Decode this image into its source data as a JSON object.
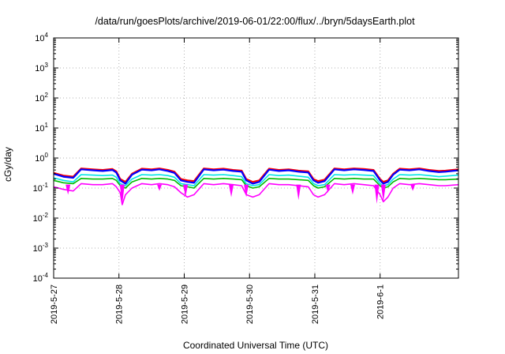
{
  "chart_data": {
    "type": "line",
    "title": "/data/run/goesPlots/archive/2019-06-01/22:00/flux/../bryn/5daysEarth.plot",
    "xlabel": "Coordinated Universal Time (UTC)",
    "ylabel": "cGy/day",
    "yscale": "log",
    "ylim": [
      0.0001,
      10000
    ],
    "xlim_days": [
      0,
      6.2
    ],
    "grid": true,
    "x_ticks": [
      {
        "label": "2019-5-27",
        "day": 0
      },
      {
        "label": "2019-5-28",
        "day": 1
      },
      {
        "label": "2019-5-29",
        "day": 2
      },
      {
        "label": "2019-5-30",
        "day": 3
      },
      {
        "label": "2019-5-31",
        "day": 4
      },
      {
        "label": "2019-6-1",
        "day": 5
      }
    ],
    "y_ticks": [
      {
        "base": "10",
        "exp": "-4",
        "value": 0.0001
      },
      {
        "base": "10",
        "exp": "-3",
        "value": 0.001
      },
      {
        "base": "10",
        "exp": "-2",
        "value": 0.01
      },
      {
        "base": "10",
        "exp": "-1",
        "value": 0.1
      },
      {
        "base": "10",
        "exp": "0",
        "value": 1
      },
      {
        "base": "10",
        "exp": "1",
        "value": 10
      },
      {
        "base": "10",
        "exp": "2",
        "value": 100
      },
      {
        "base": "10",
        "exp": "3",
        "value": 1000
      },
      {
        "base": "10",
        "exp": "4",
        "value": 10000
      }
    ],
    "series": [
      {
        "color": "#ff0000",
        "days": [
          0,
          0.15,
          0.3,
          0.42,
          0.6,
          0.75,
          0.9,
          0.96,
          1.02,
          1.1,
          1.2,
          1.35,
          1.5,
          1.62,
          1.75,
          1.85,
          1.95,
          2.05,
          2.15,
          2.3,
          2.45,
          2.6,
          2.75,
          2.88,
          2.95,
          3.05,
          3.15,
          3.3,
          3.45,
          3.6,
          3.75,
          3.9,
          3.98,
          4.05,
          4.15,
          4.3,
          4.45,
          4.6,
          4.75,
          4.9,
          5.0,
          5.05,
          5.12,
          5.2,
          5.3,
          5.45,
          5.6,
          5.75,
          5.9,
          6.0,
          6.2
        ],
        "values": [
          0.32,
          0.26,
          0.24,
          0.45,
          0.42,
          0.4,
          0.43,
          0.36,
          0.2,
          0.16,
          0.3,
          0.44,
          0.42,
          0.45,
          0.4,
          0.35,
          0.2,
          0.18,
          0.17,
          0.45,
          0.42,
          0.44,
          0.4,
          0.38,
          0.2,
          0.16,
          0.18,
          0.44,
          0.4,
          0.42,
          0.38,
          0.36,
          0.2,
          0.17,
          0.19,
          0.45,
          0.42,
          0.45,
          0.43,
          0.4,
          0.2,
          0.16,
          0.18,
          0.3,
          0.44,
          0.42,
          0.45,
          0.4,
          0.37,
          0.38,
          0.42
        ]
      },
      {
        "color": "#0000ff",
        "days": [
          0,
          0.15,
          0.3,
          0.42,
          0.6,
          0.75,
          0.9,
          0.96,
          1.02,
          1.1,
          1.2,
          1.35,
          1.5,
          1.62,
          1.75,
          1.85,
          1.95,
          2.05,
          2.15,
          2.3,
          2.45,
          2.6,
          2.75,
          2.88,
          2.95,
          3.05,
          3.15,
          3.3,
          3.45,
          3.6,
          3.75,
          3.9,
          3.98,
          4.05,
          4.15,
          4.3,
          4.45,
          4.6,
          4.75,
          4.9,
          5.0,
          5.05,
          5.12,
          5.2,
          5.3,
          5.45,
          5.6,
          5.75,
          5.9,
          6.0,
          6.2
        ],
        "values": [
          0.3,
          0.24,
          0.22,
          0.42,
          0.39,
          0.37,
          0.4,
          0.33,
          0.18,
          0.14,
          0.28,
          0.41,
          0.39,
          0.42,
          0.37,
          0.32,
          0.18,
          0.16,
          0.15,
          0.42,
          0.39,
          0.41,
          0.37,
          0.35,
          0.18,
          0.14,
          0.16,
          0.41,
          0.37,
          0.39,
          0.35,
          0.33,
          0.18,
          0.15,
          0.17,
          0.42,
          0.39,
          0.42,
          0.4,
          0.37,
          0.18,
          0.14,
          0.16,
          0.28,
          0.41,
          0.39,
          0.42,
          0.37,
          0.34,
          0.35,
          0.39
        ]
      },
      {
        "color": "#00e5e5",
        "days": [
          0,
          0.15,
          0.3,
          0.42,
          0.6,
          0.75,
          0.9,
          0.96,
          1.02,
          1.1,
          1.2,
          1.35,
          1.5,
          1.62,
          1.75,
          1.85,
          1.95,
          2.05,
          2.15,
          2.3,
          2.45,
          2.6,
          2.75,
          2.88,
          2.95,
          3.05,
          3.15,
          3.3,
          3.45,
          3.6,
          3.75,
          3.9,
          3.98,
          4.05,
          4.15,
          4.3,
          4.45,
          4.6,
          4.75,
          4.9,
          5.0,
          5.05,
          5.12,
          5.2,
          5.3,
          5.45,
          5.6,
          5.75,
          5.9,
          6.0,
          6.2
        ],
        "values": [
          0.22,
          0.18,
          0.16,
          0.28,
          0.27,
          0.26,
          0.27,
          0.23,
          0.14,
          0.12,
          0.2,
          0.28,
          0.27,
          0.28,
          0.26,
          0.23,
          0.14,
          0.13,
          0.12,
          0.28,
          0.27,
          0.28,
          0.26,
          0.24,
          0.14,
          0.12,
          0.13,
          0.28,
          0.26,
          0.27,
          0.25,
          0.23,
          0.14,
          0.12,
          0.13,
          0.28,
          0.27,
          0.28,
          0.27,
          0.26,
          0.14,
          0.12,
          0.13,
          0.2,
          0.28,
          0.27,
          0.28,
          0.26,
          0.24,
          0.25,
          0.27
        ]
      },
      {
        "color": "#00bb00",
        "days": [
          0,
          0.15,
          0.3,
          0.42,
          0.6,
          0.75,
          0.9,
          0.96,
          1.02,
          1.1,
          1.2,
          1.35,
          1.5,
          1.62,
          1.75,
          1.85,
          1.95,
          2.05,
          2.15,
          2.3,
          2.45,
          2.6,
          2.75,
          2.88,
          2.95,
          3.05,
          3.15,
          3.3,
          3.45,
          3.6,
          3.75,
          3.9,
          3.98,
          4.05,
          4.15,
          4.3,
          4.45,
          4.6,
          4.75,
          4.9,
          5.0,
          5.05,
          5.12,
          5.2,
          5.3,
          5.45,
          5.6,
          5.75,
          5.9,
          6.0,
          6.2
        ],
        "values": [
          0.18,
          0.15,
          0.14,
          0.21,
          0.2,
          0.2,
          0.21,
          0.18,
          0.12,
          0.1,
          0.16,
          0.21,
          0.2,
          0.21,
          0.2,
          0.18,
          0.12,
          0.11,
          0.1,
          0.21,
          0.2,
          0.21,
          0.2,
          0.19,
          0.12,
          0.1,
          0.11,
          0.21,
          0.2,
          0.2,
          0.19,
          0.18,
          0.12,
          0.1,
          0.11,
          0.21,
          0.2,
          0.21,
          0.2,
          0.2,
          0.12,
          0.1,
          0.11,
          0.16,
          0.21,
          0.2,
          0.21,
          0.2,
          0.19,
          0.19,
          0.2
        ]
      },
      {
        "color": "#ff00ff",
        "days": [
          0,
          0.15,
          0.3,
          0.42,
          0.6,
          0.75,
          0.9,
          0.96,
          1.02,
          1.05,
          1.1,
          1.2,
          1.35,
          1.5,
          1.62,
          1.75,
          1.85,
          1.95,
          2.05,
          2.15,
          2.3,
          2.45,
          2.6,
          2.75,
          2.88,
          2.95,
          3.05,
          3.15,
          3.3,
          3.45,
          3.6,
          3.75,
          3.9,
          3.98,
          4.05,
          4.15,
          4.3,
          4.45,
          4.6,
          4.75,
          4.9,
          5.0,
          5.05,
          5.12,
          5.2,
          5.3,
          5.45,
          5.6,
          5.75,
          5.9,
          6.0,
          6.2
        ],
        "values": [
          0.11,
          0.09,
          0.08,
          0.14,
          0.13,
          0.13,
          0.14,
          0.11,
          0.07,
          0.028,
          0.06,
          0.1,
          0.14,
          0.13,
          0.14,
          0.13,
          0.11,
          0.07,
          0.05,
          0.06,
          0.14,
          0.13,
          0.14,
          0.13,
          0.12,
          0.06,
          0.05,
          0.06,
          0.14,
          0.13,
          0.13,
          0.12,
          0.11,
          0.06,
          0.05,
          0.06,
          0.14,
          0.13,
          0.14,
          0.13,
          0.12,
          0.06,
          0.035,
          0.05,
          0.1,
          0.14,
          0.13,
          0.14,
          0.13,
          0.12,
          0.12,
          0.13
        ]
      }
    ],
    "dips": [
      {
        "day": 0.22,
        "value": 0.06
      },
      {
        "day": 1.05,
        "value": 0.028
      },
      {
        "day": 1.62,
        "value": 0.08
      },
      {
        "day": 2.02,
        "value": 0.05
      },
      {
        "day": 2.72,
        "value": 0.05
      },
      {
        "day": 2.95,
        "value": 0.05
      },
      {
        "day": 3.75,
        "value": 0.04
      },
      {
        "day": 4.2,
        "value": 0.07
      },
      {
        "day": 4.58,
        "value": 0.06
      },
      {
        "day": 4.95,
        "value": 0.03
      },
      {
        "day": 5.05,
        "value": 0.035
      },
      {
        "day": 5.5,
        "value": 0.08
      }
    ]
  }
}
